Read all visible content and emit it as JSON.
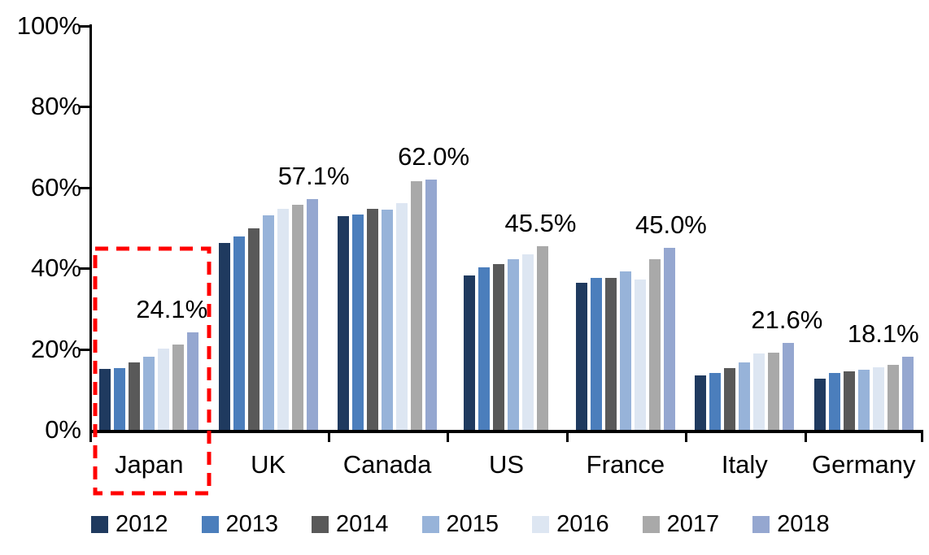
{
  "chart_data": {
    "type": "bar",
    "title": "",
    "xlabel": "",
    "ylabel": "",
    "categories": [
      "Japan",
      "UK",
      "Canada",
      "US",
      "France",
      "Italy",
      "Germany"
    ],
    "series": [
      {
        "name": "2012",
        "color": "#1F3A5F",
        "values": [
          15.0,
          46.2,
          53.0,
          38.2,
          36.4,
          13.4,
          12.6
        ]
      },
      {
        "name": "2013",
        "color": "#4B7EBC",
        "values": [
          15.2,
          47.8,
          53.3,
          40.2,
          37.6,
          14.1,
          14.0
        ]
      },
      {
        "name": "2014",
        "color": "#595959",
        "values": [
          16.8,
          50.0,
          54.8,
          41.0,
          37.7,
          15.2,
          14.4
        ]
      },
      {
        "name": "2015",
        "color": "#97B3D9",
        "values": [
          18.2,
          53.2,
          54.5,
          42.2,
          39.2,
          16.7,
          14.8
        ]
      },
      {
        "name": "2016",
        "color": "#DDE6F2",
        "values": [
          20.1,
          54.8,
          56.2,
          43.5,
          37.3,
          18.9,
          15.5
        ]
      },
      {
        "name": "2017",
        "color": "#A9A9A9",
        "values": [
          21.2,
          55.8,
          61.6,
          45.5,
          42.3,
          19.1,
          16.0
        ]
      },
      {
        "name": "2018",
        "color": "#95A7D0",
        "values": [
          24.1,
          57.1,
          62.0,
          null,
          45.0,
          21.6,
          18.1
        ]
      }
    ],
    "annotations": [
      {
        "category": "Japan",
        "text": "24.1%"
      },
      {
        "category": "UK",
        "text": "57.1%"
      },
      {
        "category": "Canada",
        "text": "62.0%"
      },
      {
        "category": "US",
        "text": "45.5%"
      },
      {
        "category": "France",
        "text": "45.0%"
      },
      {
        "category": "Italy",
        "text": "21.6%"
      },
      {
        "category": "Germany",
        "text": "18.1%"
      }
    ],
    "y_ticks": [
      "0%",
      "20%",
      "40%",
      "60%",
      "80%",
      "100%"
    ],
    "ylim": [
      0,
      100
    ],
    "grid": false,
    "legend_position": "bottom",
    "axis_color": "#000000",
    "highlight": {
      "category": "Japan",
      "style": "dashed-box",
      "color": "#FF0000"
    }
  }
}
